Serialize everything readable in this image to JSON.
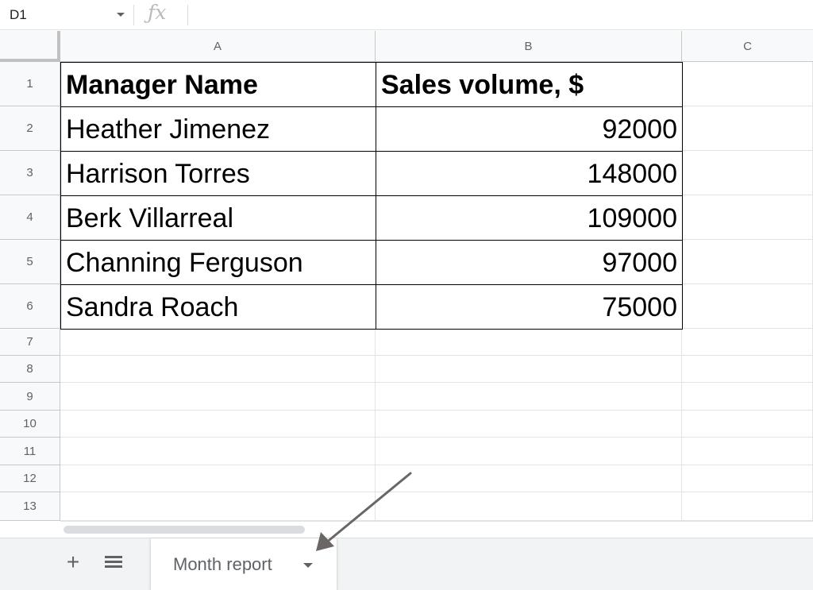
{
  "formula_bar": {
    "name_box": "D1",
    "fx_icon": "function-fx-icon",
    "formula": ""
  },
  "columns": [
    "A",
    "B",
    "C"
  ],
  "rows": [
    "1",
    "2",
    "3",
    "4",
    "5",
    "6",
    "7",
    "8",
    "9",
    "10",
    "11",
    "12",
    "13"
  ],
  "table": {
    "headers": [
      "Manager Name",
      "Sales volume, $"
    ],
    "rows": [
      [
        "Heather Jimenez",
        "92000"
      ],
      [
        "Harrison Torres",
        "148000"
      ],
      [
        "Berk Villarreal",
        "109000"
      ],
      [
        "Channing Ferguson",
        "97000"
      ],
      [
        "Sandra Roach",
        "75000"
      ]
    ]
  },
  "sheet_tabs": {
    "add_icon": "plus-icon",
    "list_icon": "sheet-list-icon",
    "active_tab": "Month report",
    "dropdown_icon": "caret-down-icon"
  },
  "colors": {
    "header_bg": "#f8f9fa",
    "gridline": "#e2e3e3",
    "table_border": "#000000",
    "tabbar_bg": "#f1f3f4",
    "annotation_arrow": "#6b6666"
  }
}
